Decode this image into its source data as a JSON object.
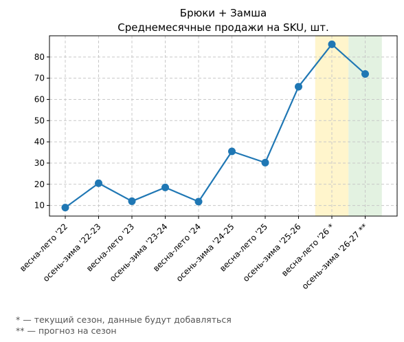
{
  "chart_data": {
    "type": "line",
    "title": "Брюки + Замша",
    "subtitle": "Среднемесячные продажи на SKU, шт.",
    "categories": [
      "весна-лето '22",
      "осень-зима '22-23",
      "весна-лето '23",
      "осень-зима '23-24",
      "весна-лето '24",
      "осень-зима '24-25",
      "весна-лето '25",
      "осень-зима '25-26",
      "весна-лето '26 *",
      "осень-зима '26-27 **"
    ],
    "series": [
      {
        "values": [
          9,
          20.5,
          12,
          18.5,
          11.8,
          35.5,
          30.2,
          66,
          86,
          72
        ]
      }
    ],
    "ylim": [
      5,
      90
    ],
    "yticks": [
      10,
      20,
      30,
      40,
      50,
      60,
      70,
      80
    ],
    "grid": true,
    "highlight_bands": [
      {
        "category": "весна-лето '26 *",
        "color": "#fff5cc"
      },
      {
        "category": "осень-зима '26-27 **",
        "color": "#e3f2e1"
      }
    ],
    "line_color": "#1f77b4"
  },
  "footnotes": [
    "* — текущий сезон, данные будут добавляться",
    "** — прогноз на сезон"
  ]
}
